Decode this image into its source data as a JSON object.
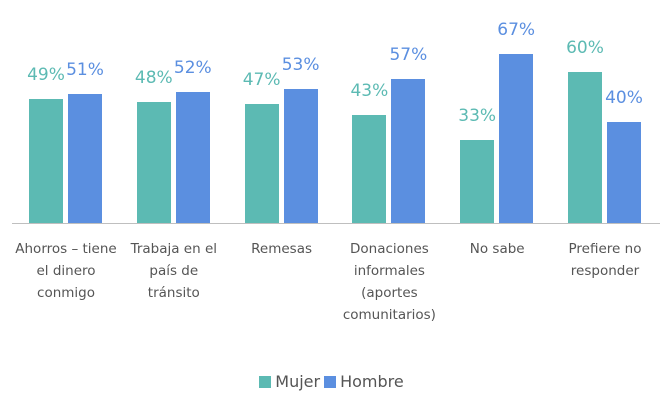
{
  "chart_data": {
    "type": "bar",
    "categories": [
      "Ahorros – tiene el dinero conmigo",
      "Trabaja en el país de tránsito",
      "Remesas",
      "Donaciones informales (aportes comunitarios)",
      "No sabe",
      "Prefiere no responder"
    ],
    "series": [
      {
        "name": "Mujer",
        "color": "#5cbab3",
        "values": [
          49,
          48,
          47,
          43,
          33,
          60
        ],
        "value_labels": [
          "49%",
          "48%",
          "47%",
          "43%",
          "33%",
          "60%"
        ]
      },
      {
        "name": "Hombre",
        "color": "#5b8fe0",
        "values": [
          51,
          52,
          53,
          57,
          67,
          40
        ],
        "value_labels": [
          "51%",
          "52%",
          "53%",
          "57%",
          "67%",
          "40%"
        ]
      }
    ],
    "legend": "bottom"
  }
}
